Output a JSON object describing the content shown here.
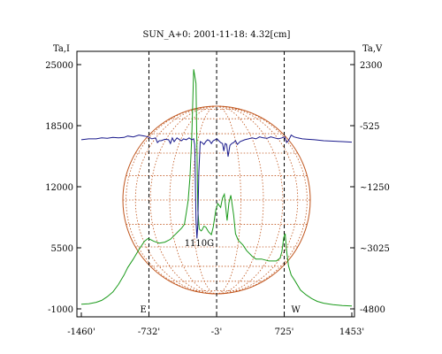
{
  "chart_data": {
    "type": "line",
    "title": "SUN_A+0: 2001-11-18: 4.32[cm]",
    "left_axis_label": "Ta,I",
    "right_axis_label": "Ta,V",
    "left_ticks": [
      "25000",
      "18500",
      "12000",
      "5500",
      "-1000"
    ],
    "left_tick_values": [
      25000,
      18500,
      12000,
      5500,
      -1000
    ],
    "right_ticks": [
      "2300",
      "-525",
      "~1250",
      "~3025",
      "-4800"
    ],
    "right_tick_values": [
      2300,
      -525,
      -1250,
      -3025,
      -4800
    ],
    "x_ticks": [
      "-1460'",
      "-732'",
      "-3'",
      "725'",
      "1453'"
    ],
    "x_tick_values": [
      -1460,
      -732,
      -3,
      725,
      1453
    ],
    "xlim": [
      -1460,
      1453
    ],
    "ylim_left": [
      -1000,
      25000
    ],
    "limb_marks": [
      {
        "x": -732,
        "label": "E"
      },
      {
        "x": -3,
        "label": ""
      },
      {
        "x": 725,
        "label": "W"
      }
    ],
    "annotation": {
      "text": "1110G",
      "x": -190,
      "y": 5700
    },
    "colors": {
      "intensity": "#1a9a1a",
      "polarization": "#1a1a8c",
      "disk": "#c0561e",
      "frame": "#000000"
    },
    "series": [
      {
        "name": "",
        "color_key": "intensity",
        "x": [
          -1460,
          -1380,
          -1300,
          -1240,
          -1180,
          -1120,
          -1060,
          -1000,
          -960,
          -900,
          -840,
          -780,
          -740,
          -720,
          -680,
          -620,
          -560,
          -500,
          -460,
          -420,
          -380,
          -350,
          -330,
          -310,
          -290,
          -270,
          -250,
          -225,
          -215,
          -205,
          -190,
          -180,
          -170,
          -160,
          -150,
          -140,
          -120,
          -90,
          -60,
          -40,
          -10,
          10,
          40,
          60,
          80,
          110,
          130,
          150,
          180,
          200,
          230,
          280,
          320,
          380,
          420,
          480,
          520,
          560,
          600,
          640,
          680,
          700,
          720,
          735,
          750,
          770,
          800,
          840,
          900,
          960,
          1020,
          1080,
          1150,
          1250,
          1350,
          1453
        ],
        "y": [
          -500,
          -450,
          -300,
          -100,
          300,
          800,
          1600,
          2600,
          3400,
          4300,
          5300,
          6200,
          6500,
          6400,
          6200,
          6000,
          6100,
          6400,
          6800,
          7200,
          7600,
          8000,
          9200,
          10500,
          13000,
          17500,
          24500,
          23000,
          16000,
          9500,
          7500,
          7400,
          7300,
          7400,
          7600,
          7800,
          7700,
          7200,
          6900,
          7700,
          9600,
          10200,
          9800,
          10800,
          11200,
          8400,
          10300,
          11100,
          9000,
          7000,
          6300,
          5800,
          5200,
          4600,
          4300,
          4300,
          4200,
          4100,
          4100,
          4100,
          4400,
          5100,
          6600,
          7000,
          5200,
          3600,
          2600,
          2000,
          1000,
          500,
          100,
          -200,
          -400,
          -550,
          -650,
          -700
        ]
      },
      {
        "name": "",
        "color_key": "polarization",
        "x": [
          -1460,
          -1380,
          -1300,
          -1240,
          -1180,
          -1120,
          -1060,
          -1000,
          -960,
          -900,
          -840,
          -780,
          -740,
          -700,
          -660,
          -640,
          -620,
          -600,
          -560,
          -520,
          -500,
          -480,
          -460,
          -430,
          -400,
          -380,
          -360,
          -330,
          -300,
          -270,
          -250,
          -240,
          -235,
          -225,
          -215,
          -205,
          -195,
          -180,
          -160,
          -140,
          -120,
          -100,
          -80,
          -60,
          -40,
          -20,
          0,
          20,
          40,
          60,
          75,
          90,
          105,
          120,
          140,
          160,
          180,
          200,
          220,
          250,
          300,
          340,
          380,
          420,
          460,
          500,
          540,
          580,
          620,
          660,
          700,
          730,
          750,
          770,
          800,
          830,
          870,
          920,
          980,
          1050,
          1150,
          1250,
          1350,
          1453
        ],
        "y": [
          17000,
          17100,
          17100,
          17200,
          17150,
          17250,
          17200,
          17250,
          17400,
          17300,
          17500,
          17400,
          17300,
          17100,
          17200,
          16700,
          16900,
          16900,
          17050,
          17000,
          16600,
          17200,
          16800,
          17200,
          17000,
          16900,
          17100,
          17000,
          17200,
          17000,
          17100,
          16500,
          14500,
          8500,
          6500,
          8000,
          13500,
          16800,
          16700,
          16500,
          16800,
          17000,
          16900,
          16600,
          16900,
          17000,
          17100,
          16900,
          16700,
          16600,
          15800,
          16600,
          16500,
          15200,
          16400,
          16600,
          16700,
          16900,
          16500,
          16800,
          17000,
          17100,
          17200,
          17100,
          17300,
          17200,
          17150,
          17300,
          17200,
          17100,
          17200,
          17300,
          16700,
          16900,
          17500,
          17300,
          17200,
          17100,
          17050,
          17000,
          16900,
          16850,
          16800,
          16750
        ]
      }
    ]
  }
}
